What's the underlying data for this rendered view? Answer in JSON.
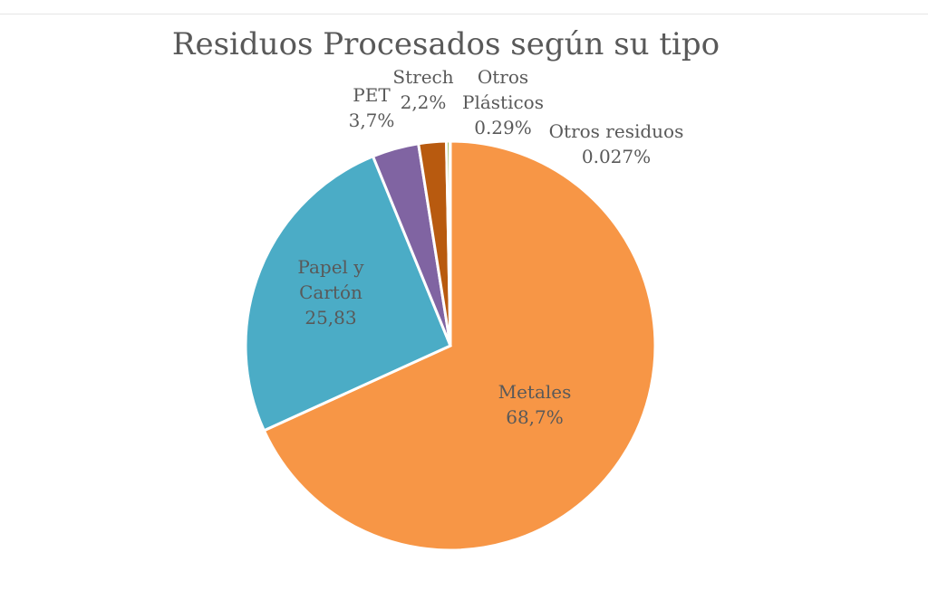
{
  "chart_data": {
    "type": "pie",
    "title": "Residuos Procesados según su tipo",
    "start_angle": "top",
    "direction": "clockwise",
    "slices": [
      {
        "name": "Metales",
        "value": 68.7,
        "label": [
          "Metales",
          "68,7%"
        ],
        "color": "#F79646"
      },
      {
        "name": "Papel y Cartón",
        "value": 25.83,
        "label": [
          "Papel y",
          "Cartón",
          "25,83"
        ],
        "color": "#4BACC6"
      },
      {
        "name": "PET",
        "value": 3.7,
        "label": [
          "PET",
          "3,7%"
        ],
        "color": "#8064A2"
      },
      {
        "name": "Strech",
        "value": 2.2,
        "label": [
          "Strech",
          "2,2%"
        ],
        "color": "#B85A0F"
      },
      {
        "name": "Otros Plásticos",
        "value": 0.29,
        "label": [
          "Otros",
          "Plásticos",
          "0.29%"
        ],
        "color": "#9BBB59"
      },
      {
        "name": "Otros residuos",
        "value": 0.027,
        "label": [
          "Otros residuos",
          "0.027%"
        ],
        "color": "#4F81BD"
      }
    ]
  }
}
